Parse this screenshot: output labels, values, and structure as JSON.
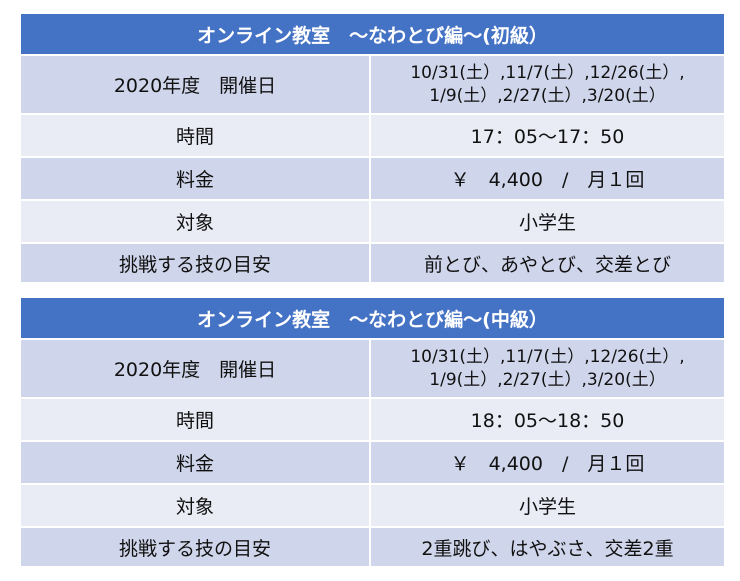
{
  "tables": [
    {
      "title": "オンライン教室　～なわとび編～(初級）",
      "rows": {
        "dates": {
          "label": "2020年度　開催日",
          "line1": "10/31(土）,11/7(土）,12/26(土）,",
          "line2": "1/9(土）,2/27(土）,3/20(土）"
        },
        "time": {
          "label": "時間",
          "value": "17：05～17：50"
        },
        "fee": {
          "label": "料金",
          "value": "￥　4,400　/　月１回"
        },
        "target": {
          "label": "対象",
          "value": "小学生"
        },
        "skills": {
          "label": "挑戦する技の目安",
          "value": "前とび、あやとび、交差とび"
        }
      }
    },
    {
      "title": "オンライン教室　～なわとび編～(中級）",
      "rows": {
        "dates": {
          "label": "2020年度　開催日",
          "line1": "10/31(土）,11/7(土）,12/26(土）,",
          "line2": "1/9(土）,2/27(土）,3/20(土）"
        },
        "time": {
          "label": "時間",
          "value": "18：05～18：50"
        },
        "fee": {
          "label": "料金",
          "value": "￥　4,400　/　月１回"
        },
        "target": {
          "label": "対象",
          "value": "小学生"
        },
        "skills": {
          "label": "挑戦する技の目安",
          "value": "2重跳び、はやぶさ、交差2重"
        }
      }
    }
  ],
  "colors": {
    "header": "#4472c4",
    "row_dark": "#cfd5ea",
    "row_light": "#e9ebf5"
  }
}
